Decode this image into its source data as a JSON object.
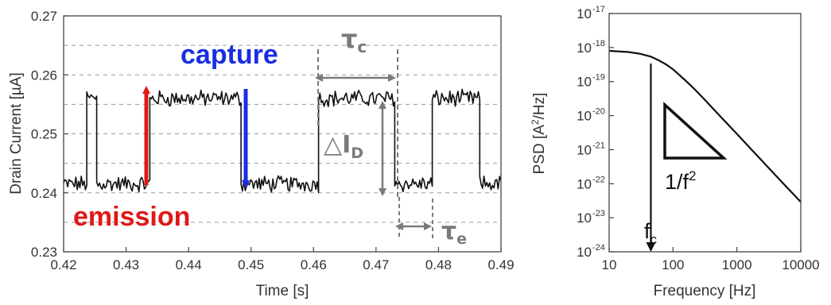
{
  "chart_data": [
    {
      "type": "line",
      "xlabel": "Time [s]",
      "ylabel": "Drain Current [µA]",
      "xlim": [
        0.42,
        0.49
      ],
      "ylim": [
        0.23,
        0.27
      ],
      "x_ticks": [
        "0.42",
        "0.43",
        "0.44",
        "0.45",
        "0.46",
        "0.47",
        "0.48",
        "0.49"
      ],
      "y_ticks": [
        "0.23",
        "0.24",
        "0.25",
        "0.26",
        "0.27"
      ],
      "grid": "dashed horizontal",
      "levels": {
        "high": 0.256,
        "low": 0.2415
      },
      "segments": [
        {
          "x0": 0.42,
          "x1": 0.4237,
          "level": "low"
        },
        {
          "x0": 0.4237,
          "x1": 0.4253,
          "level": "high"
        },
        {
          "x0": 0.4253,
          "x1": 0.4338,
          "level": "low"
        },
        {
          "x0": 0.4338,
          "x1": 0.4484,
          "level": "high"
        },
        {
          "x0": 0.4484,
          "x1": 0.4608,
          "level": "low"
        },
        {
          "x0": 0.4608,
          "x1": 0.473,
          "level": "high"
        },
        {
          "x0": 0.473,
          "x1": 0.479,
          "level": "low"
        },
        {
          "x0": 0.479,
          "x1": 0.4866,
          "level": "high"
        },
        {
          "x0": 0.4866,
          "x1": 0.49,
          "level": "low"
        }
      ],
      "annotations": {
        "capture": "capture",
        "emission": "emission",
        "tau_c": "τ",
        "tau_c_sub": "c",
        "tau_e": "τ",
        "tau_e_sub": "e",
        "delta_id": "△I",
        "delta_id_sub": "D"
      },
      "colors": {
        "trace": "#111111",
        "capture": "#1a2ee0",
        "emission": "#e01818",
        "marker": "#7a7a7a"
      }
    },
    {
      "type": "line",
      "xlabel": "Frequency [Hz]",
      "ylabel_main": "PSD [A",
      "ylabel_sup": "2",
      "ylabel_end": "/Hz]",
      "x_scale": "log",
      "y_scale": "log",
      "xlim": [
        10,
        10000
      ],
      "ylim": [
        1e-24,
        1e-17
      ],
      "x_ticks": [
        "10",
        "100",
        "1000",
        "10000"
      ],
      "y_ticks": [
        {
          "base": "10",
          "exp": "-24"
        },
        {
          "base": "10",
          "exp": "-23"
        },
        {
          "base": "10",
          "exp": "-22"
        },
        {
          "base": "10",
          "exp": "-21"
        },
        {
          "base": "10",
          "exp": "-20"
        },
        {
          "base": "10",
          "exp": "-19"
        },
        {
          "base": "10",
          "exp": "-18"
        },
        {
          "base": "10",
          "exp": "-17"
        }
      ],
      "series": [
        {
          "x": [
            10,
            20,
            30,
            45,
            60,
            80,
            100,
            150,
            200,
            300,
            500,
            1000,
            2000,
            5000,
            10000
          ],
          "y": [
            8e-19,
            7.4e-19,
            6.6e-19,
            5.4e-19,
            4.2e-19,
            3.1e-19,
            2.3e-19,
            1.16e-19,
            7e-20,
            3.2e-20,
            1.15e-20,
            2.9e-21,
            7.2e-22,
            1.15e-22,
            2.9e-23
          ]
        }
      ],
      "corner_frequency": 45,
      "annotations": {
        "slope": "1/f",
        "slope_sup": "2",
        "fc": "f",
        "fc_sub": "c"
      }
    }
  ]
}
